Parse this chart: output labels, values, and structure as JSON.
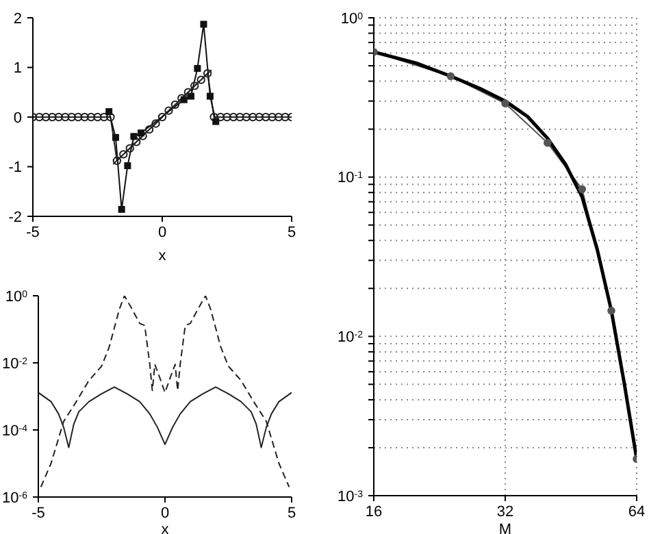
{
  "chart_data": [
    {
      "type": "line",
      "xlabel": "x",
      "xlim": [
        -5,
        5
      ],
      "xticks": [
        -5,
        0,
        5
      ],
      "ylim": [
        -2,
        2
      ],
      "yticks": [
        -2,
        -1,
        0,
        1,
        2
      ],
      "series": [
        {
          "color": "#222222",
          "marker": "circle",
          "line_style": "solid",
          "x": [
            -5,
            -4.75,
            -4.5,
            -4.25,
            -4,
            -3.75,
            -3.5,
            -3.25,
            -3,
            -2.75,
            -2.5,
            -2.25,
            -2,
            -1.75,
            -1.5,
            -1.25,
            -1,
            -0.75,
            -0.5,
            -0.25,
            0,
            0.25,
            0.5,
            0.75,
            1,
            1.25,
            1.5,
            1.75,
            2,
            2.25,
            2.5,
            2.75,
            3,
            3.25,
            3.5,
            3.75,
            4,
            4.25,
            4.5,
            4.75,
            5
          ],
          "values": [
            0,
            0,
            0,
            0,
            0,
            0,
            0,
            0,
            0,
            0,
            0,
            0,
            0,
            -0.88,
            -0.75,
            -0.63,
            -0.5,
            -0.38,
            -0.25,
            -0.13,
            0,
            0.13,
            0.25,
            0.38,
            0.5,
            0.63,
            0.75,
            0.88,
            0,
            0,
            0,
            0,
            0,
            0,
            0,
            0,
            0,
            0,
            0,
            0,
            0
          ]
        },
        {
          "color": "#222222",
          "marker": "none",
          "line_style": "solid",
          "x": [
            -1.9,
            -1.7,
            -1.5,
            -1.3,
            -1.1,
            -0.9,
            -0.7,
            -0.5,
            -0.3,
            -0.1,
            0.1,
            0.3,
            0.5,
            0.7,
            0.9,
            1.1,
            1.3,
            1.5,
            1.7,
            1.9
          ],
          "values": [
            -0.95,
            -0.85,
            -0.75,
            -0.65,
            -0.55,
            -0.45,
            -0.35,
            -0.25,
            -0.15,
            -0.05,
            0.05,
            0.15,
            0.25,
            0.35,
            0.45,
            0.55,
            0.65,
            0.75,
            0.85,
            0.95
          ]
        },
        {
          "color": "#111111",
          "marker": "square",
          "line_style": "solid",
          "x": [
            -2.06,
            -1.8,
            -1.57,
            -1.34,
            -1.1,
            -0.82,
            0.84,
            1.11,
            1.36,
            1.6,
            1.85,
            2.07
          ],
          "values": [
            0.11,
            -0.41,
            -1.86,
            -0.98,
            -0.39,
            -0.32,
            0.35,
            0.42,
            0.98,
            1.87,
            0.42,
            -0.09
          ]
        }
      ]
    },
    {
      "type": "line",
      "xlabel": "x",
      "log": "y",
      "xlim": [
        -5,
        5
      ],
      "xticks": [
        -5,
        0,
        5
      ],
      "ylim": [
        1e-06,
        1
      ],
      "yticks": [
        {
          "value": 1e-06,
          "label": "10$^{-6}$"
        },
        {
          "value": 0.0001,
          "label": "10$^{-4}$"
        },
        {
          "value": 0.01,
          "label": "10$^{-2}$"
        },
        {
          "value": 1,
          "label": "10$^{0}$"
        }
      ],
      "series": [
        {
          "color": "#222222",
          "marker": "none",
          "line_style": "solid",
          "x": [
            -5,
            -4.5,
            -4.2,
            -4,
            -3.8,
            -3.6,
            -3.4,
            -3,
            -2.5,
            -2,
            -1.5,
            -1,
            -0.6,
            -0.3,
            0,
            0.3,
            0.6,
            1,
            1.5,
            2,
            2.5,
            3,
            3.4,
            3.6,
            3.8,
            4,
            4.2,
            4.5,
            5
          ],
          "values": [
            0.0013,
            0.0007,
            0.0003,
            0.00012,
            3e-05,
            0.00015,
            0.00035,
            0.0007,
            0.0012,
            0.0019,
            0.0012,
            0.0007,
            0.0003,
            0.00012,
            3.7e-05,
            0.00012,
            0.0003,
            0.0007,
            0.0012,
            0.0019,
            0.0012,
            0.0007,
            0.00035,
            0.00015,
            3e-05,
            0.00012,
            0.0003,
            0.0007,
            0.0013
          ]
        },
        {
          "color": "#222222",
          "marker": "none",
          "line_style": "dashed",
          "x": [
            -4.9,
            -4.5,
            -4,
            -3.5,
            -3,
            -2.5,
            -2.2,
            -1.8,
            -1.6,
            -1.3,
            -1,
            -0.8,
            -0.6,
            -0.5,
            -0.4,
            -0.2,
            0,
            0.2,
            0.4,
            0.5,
            0.6,
            0.8,
            1,
            1.3,
            1.6,
            1.8,
            2.2,
            2.5,
            3,
            3.5,
            4,
            4.5,
            4.9
          ],
          "values": [
            2e-06,
            1e-05,
            0.00018,
            0.0007,
            0.003,
            0.008,
            0.03,
            0.4,
            1,
            0.4,
            0.15,
            0.13,
            0.009,
            0.0015,
            0.009,
            0.0035,
            0.0013,
            0.0035,
            0.009,
            0.0015,
            0.009,
            0.13,
            0.15,
            0.4,
            1,
            0.4,
            0.03,
            0.008,
            0.003,
            0.0007,
            0.00018,
            1e-05,
            2e-06
          ]
        }
      ]
    },
    {
      "type": "line",
      "xlabel": "M",
      "log": "xy",
      "grid": true,
      "xlim": [
        16,
        64
      ],
      "xticks": [
        16,
        32,
        64
      ],
      "ylim": [
        0.001,
        1
      ],
      "yticks": [
        {
          "value": 0.001,
          "label": "10$^{-3}$"
        },
        {
          "value": 0.002,
          "label": null
        },
        {
          "value": 0.003,
          "label": null
        },
        {
          "value": 0.004,
          "label": null
        },
        {
          "value": 0.005,
          "label": null
        },
        {
          "value": 0.006,
          "label": null
        },
        {
          "value": 0.007,
          "label": null
        },
        {
          "value": 0.008,
          "label": null
        },
        {
          "value": 0.009,
          "label": null
        },
        {
          "value": 0.01,
          "label": "10$^{-2}$"
        },
        {
          "value": 0.02,
          "label": null
        },
        {
          "value": 0.03,
          "label": null
        },
        {
          "value": 0.04,
          "label": null
        },
        {
          "value": 0.05,
          "label": null
        },
        {
          "value": 0.06,
          "label": null
        },
        {
          "value": 0.07,
          "label": null
        },
        {
          "value": 0.08,
          "label": null
        },
        {
          "value": 0.09,
          "label": null
        },
        {
          "value": 0.1,
          "label": "10$^{-1}$"
        },
        {
          "value": 0.2,
          "label": null
        },
        {
          "value": 0.3,
          "label": null
        },
        {
          "value": 0.4,
          "label": null
        },
        {
          "value": 0.5,
          "label": null
        },
        {
          "value": 0.6,
          "label": null
        },
        {
          "value": 0.7,
          "label": null
        },
        {
          "value": 0.8,
          "label": null
        },
        {
          "value": 0.9,
          "label": null
        },
        {
          "value": 1,
          "label": "10$^{0}$"
        }
      ],
      "series": [
        {
          "color": "#555555",
          "marker": "circle",
          "line_style": "solid",
          "x": [
            16,
            24,
            32,
            40,
            48,
            56,
            64
          ],
          "values": [
            0.61,
            0.43,
            0.29,
            0.164,
            0.084,
            0.0145,
            0.0017
          ]
        },
        {
          "color": "#000000",
          "marker": "none",
          "line_style": "solid",
          "x": [
            16,
            20,
            24,
            28,
            32,
            36,
            40,
            44,
            48,
            52,
            56,
            60,
            64
          ],
          "values": [
            0.61,
            0.52,
            0.43,
            0.36,
            0.3,
            0.24,
            0.175,
            0.12,
            0.075,
            0.035,
            0.0145,
            0.005,
            0.0017
          ]
        }
      ]
    }
  ]
}
